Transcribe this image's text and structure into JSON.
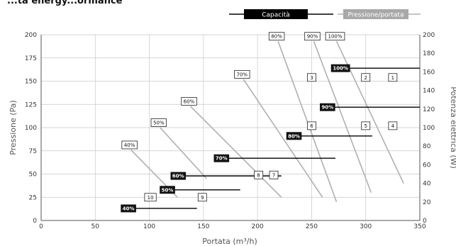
{
  "heading_fragment": "...ta energy...ormance",
  "legend": {
    "capacity": "Capacità",
    "pressure_flow": "Pressione/portata"
  },
  "colors": {
    "capacity": "#000000",
    "pressure_flow": "#b0b0b0",
    "grid": "#c8c8c8",
    "axis": "#555555"
  },
  "chart_data": {
    "type": "line",
    "xlabel": "Portata (m³/h)",
    "ylabel": "Pressione (Pa)",
    "y2label": "Potenza elettrica (W)",
    "xlim": [
      0,
      350
    ],
    "ylim": [
      0,
      200
    ],
    "y2lim": [
      0,
      200
    ],
    "xticks": [
      0,
      50,
      100,
      150,
      200,
      250,
      300,
      350
    ],
    "yticks": [
      0,
      25,
      50,
      75,
      100,
      125,
      150,
      175,
      200
    ],
    "y2ticks": [
      0,
      20,
      40,
      60,
      80,
      100,
      120,
      140,
      160,
      180,
      200
    ],
    "grid": true,
    "legend_position": "top-right",
    "pressure_curves": [
      {
        "label": "40%",
        "x": [
          83,
          126
        ],
        "y": [
          76,
          25
        ]
      },
      {
        "label": "50%",
        "x": [
          110,
          153
        ],
        "y": [
          100,
          45
        ]
      },
      {
        "label": "60%",
        "x": [
          138,
          222
        ],
        "y": [
          123,
          25
        ]
      },
      {
        "label": "70%",
        "x": [
          187,
          260
        ],
        "y": [
          152,
          25
        ]
      },
      {
        "label": "80%",
        "x": [
          219,
          273
        ],
        "y": [
          193,
          20
        ]
      },
      {
        "label": "90%",
        "x": [
          252,
          305
        ],
        "y": [
          193,
          30
        ]
      },
      {
        "label": "100%",
        "x": [
          273,
          335
        ],
        "y": [
          193,
          40
        ]
      }
    ],
    "capacity_lines": [
      {
        "label": "40%",
        "x": [
          82,
          144
        ],
        "y2": 13
      },
      {
        "label": "50%",
        "x": [
          118,
          184
        ],
        "y2": 33
      },
      {
        "label": "60%",
        "x": [
          128,
          222
        ],
        "y2": 48
      },
      {
        "label": "70%",
        "x": [
          168,
          272
        ],
        "y2": 67
      },
      {
        "label": "80%",
        "x": [
          235,
          306
        ],
        "y2": 91
      },
      {
        "label": "90%",
        "x": [
          266,
          350
        ],
        "y2": 122
      },
      {
        "label": "100%",
        "x": [
          278,
          350
        ],
        "y2": 164
      }
    ],
    "point_labels": [
      {
        "label": "1",
        "x": 325,
        "y": 154
      },
      {
        "label": "2",
        "x": 300,
        "y": 154
      },
      {
        "label": "3",
        "x": 250,
        "y": 154
      },
      {
        "label": "4",
        "x": 325,
        "y": 102
      },
      {
        "label": "5",
        "x": 300,
        "y": 102
      },
      {
        "label": "6",
        "x": 250,
        "y": 102
      },
      {
        "label": "7",
        "x": 215,
        "y": 49
      },
      {
        "label": "8",
        "x": 201,
        "y": 49
      },
      {
        "label": "9",
        "x": 149,
        "y": 25
      },
      {
        "label": "10",
        "x": 101,
        "y": 25
      }
    ]
  }
}
